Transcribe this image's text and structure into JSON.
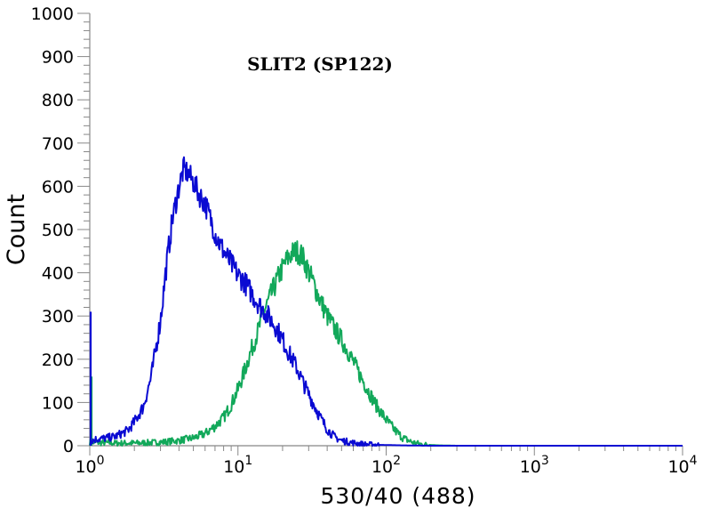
{
  "chart_data": {
    "type": "line",
    "title": "",
    "annotation": "SLIT2 (SP122)",
    "xlabel": "530/40 (488)",
    "ylabel": "Count",
    "xscale": "log",
    "xlim": [
      1,
      10000
    ],
    "ylim": [
      0,
      1000
    ],
    "x_ticks": [
      {
        "value": 1,
        "base": "10",
        "exp": "0"
      },
      {
        "value": 10,
        "base": "10",
        "exp": "1"
      },
      {
        "value": 100,
        "base": "10",
        "exp": "2"
      },
      {
        "value": 1000,
        "base": "10",
        "exp": "3"
      },
      {
        "value": 10000,
        "base": "10",
        "exp": "4"
      }
    ],
    "y_ticks": [
      "0",
      "100",
      "200",
      "300",
      "400",
      "500",
      "600",
      "700",
      "800",
      "900",
      "1000"
    ],
    "grid": false,
    "legend": "none",
    "series": [
      {
        "color": "#0a0ad2",
        "spike": {
          "x": 1.0,
          "y": 310
        },
        "x": [
          1.0,
          1.1,
          1.3,
          1.5,
          1.8,
          2.0,
          2.3,
          2.6,
          3.0,
          3.3,
          3.6,
          4.0,
          4.3,
          4.6,
          5.0,
          5.5,
          6.0,
          6.6,
          7.2,
          8.0,
          9.0,
          10.0,
          11.0,
          12.5,
          14.0,
          16.0,
          18.0,
          20.0,
          22.0,
          25.0,
          28.0,
          32.0,
          36.0,
          40.0,
          45.0,
          50.0,
          57.0,
          65.0,
          75.0,
          90.0,
          120.0,
          200.0,
          400.0,
          10000.0
        ],
        "y": [
          10,
          15,
          18,
          22,
          35,
          55,
          90,
          160,
          290,
          420,
          520,
          600,
          640,
          630,
          610,
          580,
          560,
          520,
          480,
          450,
          420,
          395,
          380,
          350,
          325,
          300,
          275,
          245,
          215,
          180,
          140,
          100,
          65,
          38,
          20,
          12,
          8,
          5,
          3,
          2,
          1,
          0,
          0,
          0
        ]
      },
      {
        "color": "#12a85a",
        "spike": {
          "x": 1.0,
          "y": 160
        },
        "x": [
          1.0,
          1.5,
          2.0,
          3.0,
          4.0,
          5.0,
          6.0,
          7.0,
          8.0,
          9.0,
          10.0,
          11.0,
          12.0,
          13.5,
          15.0,
          17.0,
          19.0,
          21.0,
          23.0,
          25.0,
          27.0,
          29.0,
          32.0,
          35.0,
          40.0,
          45.0,
          50.0,
          57.0,
          65.0,
          75.0,
          85.0,
          100.0,
          115.0,
          130.0,
          150.0,
          175.0,
          220.0,
          300.0,
          10000.0
        ],
        "y": [
          8,
          6,
          6,
          8,
          12,
          18,
          28,
          45,
          65,
          95,
          130,
          170,
          210,
          260,
          310,
          355,
          395,
          425,
          445,
          450,
          440,
          415,
          380,
          345,
          300,
          270,
          245,
          210,
          170,
          130,
          95,
          60,
          35,
          18,
          8,
          3,
          1,
          0,
          0
        ]
      }
    ]
  }
}
